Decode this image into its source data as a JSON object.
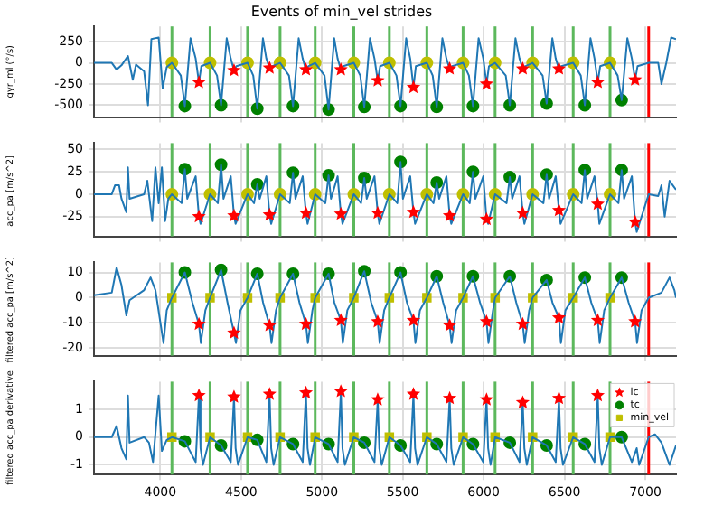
{
  "chart_data": [
    {
      "type": "line",
      "title": "Events of min_vel strides",
      "ylabel": "gyr_ml (°/s)",
      "xlim": [
        3590,
        7190
      ],
      "xticks": [
        4000,
        4500,
        5000,
        5500,
        6000,
        6500,
        7000
      ],
      "ylim": [
        -640,
        430
      ],
      "yticks": [
        -500,
        -250,
        0,
        250
      ],
      "grid": true,
      "tick_labels": "y",
      "legend": false,
      "series": [
        {
          "type": "line",
          "color": "#1f77b4",
          "marker": "none",
          "x": [
            3590,
            3700,
            3730,
            3760,
            3800,
            3830,
            3850,
            3900,
            3924,
            3945,
            3990,
            4015,
            4040,
            4072,
            4127,
            4152,
            4187,
            4219,
            4239,
            4254,
            4308,
            4351,
            4376,
            4411,
            4436,
            4456,
            4471,
            4540,
            4575,
            4600,
            4635,
            4656,
            4676,
            4691,
            4741,
            4796,
            4821,
            4856,
            4881,
            4901,
            4916,
            4958,
            5016,
            5041,
            5076,
            5097,
            5117,
            5132,
            5197,
            5237,
            5262,
            5297,
            5325,
            5345,
            5360,
            5417,
            5461,
            5486,
            5521,
            5546,
            5566,
            5581,
            5649,
            5685,
            5710,
            5745,
            5770,
            5790,
            5805,
            5873,
            5909,
            5934,
            5969,
            5998,
            6018,
            6033,
            6071,
            6137,
            6162,
            6197,
            6222,
            6242,
            6257,
            6303,
            6365,
            6390,
            6425,
            6446,
            6466,
            6481,
            6554,
            6601,
            6626,
            6661,
            6686,
            6706,
            6721,
            6782,
            6829,
            6854,
            6889,
            6917,
            6937,
            6952,
            7021,
            7080,
            7100,
            7130,
            7160,
            7190
          ],
          "values": [
            0,
            0,
            -80,
            -30,
            80,
            -200,
            -20,
            -100,
            -500,
            280,
            300,
            -300,
            -50,
            0,
            -150,
            -510,
            290,
            50,
            -230,
            -40,
            0,
            -150,
            -500,
            290,
            50,
            -90,
            -40,
            0,
            -150,
            -540,
            290,
            50,
            -60,
            -40,
            0,
            -150,
            -510,
            290,
            50,
            -80,
            -40,
            0,
            -150,
            -550,
            290,
            50,
            -80,
            -40,
            0,
            -150,
            -520,
            290,
            50,
            -210,
            -40,
            0,
            -150,
            -510,
            290,
            50,
            -290,
            -40,
            0,
            -150,
            -520,
            290,
            50,
            -70,
            -40,
            0,
            -150,
            -510,
            290,
            50,
            -250,
            -40,
            0,
            -150,
            -500,
            290,
            50,
            -70,
            -40,
            0,
            -150,
            -480,
            290,
            50,
            -70,
            -40,
            0,
            -150,
            -500,
            290,
            50,
            -230,
            -40,
            0,
            -150,
            -440,
            290,
            50,
            -200,
            -40,
            0,
            0,
            -250,
            0,
            300,
            280
          ]
        },
        {
          "type": "scatter",
          "color": "#ff0000",
          "marker": "star",
          "x": [
            4239,
            4456,
            4676,
            4901,
            5117,
            5345,
            5566,
            5790,
            6018,
            6242,
            6466,
            6706,
            6937
          ],
          "values": [
            -230,
            -90,
            -60,
            -80,
            -80,
            -210,
            -290,
            -70,
            -250,
            -70,
            -70,
            -230,
            -200
          ]
        },
        {
          "type": "scatter",
          "color": "#008000",
          "marker": "circle",
          "x": [
            4152,
            4376,
            4600,
            4821,
            5041,
            5262,
            5486,
            5710,
            5934,
            6162,
            6390,
            6626,
            6854
          ],
          "values": [
            -510,
            -500,
            -540,
            -510,
            -550,
            -520,
            -510,
            -520,
            -510,
            -500,
            -480,
            -500,
            -440
          ]
        },
        {
          "type": "scatter",
          "color": "#bfbf00",
          "marker": "circle",
          "x": [
            4072,
            4308,
            4540,
            4741,
            4958,
            5197,
            5417,
            5649,
            5873,
            6071,
            6303,
            6554,
            6782
          ],
          "values": [
            0,
            0,
            0,
            0,
            0,
            0,
            0,
            0,
            0,
            0,
            0,
            0,
            0
          ]
        }
      ],
      "ref_lines": [
        {
          "axis": "x",
          "value": 4072,
          "color": "#5cb85c"
        },
        {
          "axis": "x",
          "value": 4308,
          "color": "#5cb85c"
        },
        {
          "axis": "x",
          "value": 4540,
          "color": "#5cb85c"
        },
        {
          "axis": "x",
          "value": 4741,
          "color": "#5cb85c"
        },
        {
          "axis": "x",
          "value": 4958,
          "color": "#5cb85c"
        },
        {
          "axis": "x",
          "value": 5197,
          "color": "#5cb85c"
        },
        {
          "axis": "x",
          "value": 5417,
          "color": "#5cb85c"
        },
        {
          "axis": "x",
          "value": 5649,
          "color": "#5cb85c"
        },
        {
          "axis": "x",
          "value": 5873,
          "color": "#5cb85c"
        },
        {
          "axis": "x",
          "value": 6071,
          "color": "#5cb85c"
        },
        {
          "axis": "x",
          "value": 6303,
          "color": "#5cb85c"
        },
        {
          "axis": "x",
          "value": 6554,
          "color": "#5cb85c"
        },
        {
          "axis": "x",
          "value": 6782,
          "color": "#5cb85c"
        },
        {
          "axis": "x",
          "value": 7021,
          "color": "#ff0000"
        }
      ]
    },
    {
      "type": "line",
      "ylabel": "acc_pa [m/s^2]",
      "xlim": [
        3590,
        7190
      ],
      "xticks": [
        4000,
        4500,
        5000,
        5500,
        6000,
        6500,
        7000
      ],
      "ylim": [
        -47,
        57
      ],
      "yticks": [
        -25,
        0,
        25,
        50
      ],
      "grid": true,
      "tick_labels": "y",
      "legend": false,
      "series": [
        {
          "type": "line",
          "color": "#1f77b4",
          "marker": "none",
          "x": [
            3590,
            3700,
            3720,
            3745,
            3760,
            3790,
            3800,
            3810,
            3900,
            3920,
            3950,
            3970,
            3990,
            4010,
            4030,
            4050,
            4072,
            4132,
            4152,
            4167,
            4219,
            4239,
            4249,
            4308,
            4356,
            4376,
            4391,
            4436,
            4456,
            4466,
            4540,
            4580,
            4600,
            4615,
            4656,
            4676,
            4686,
            4741,
            4801,
            4821,
            4836,
            4881,
            4901,
            4911,
            4958,
            5021,
            5041,
            5056,
            5097,
            5117,
            5127,
            5197,
            5242,
            5262,
            5277,
            5325,
            5345,
            5355,
            5417,
            5466,
            5486,
            5501,
            5546,
            5566,
            5576,
            5649,
            5690,
            5710,
            5725,
            5770,
            5790,
            5800,
            5873,
            5914,
            5934,
            5949,
            5998,
            6018,
            6028,
            6071,
            6142,
            6162,
            6177,
            6222,
            6242,
            6252,
            6303,
            6370,
            6390,
            6405,
            6446,
            6466,
            6476,
            6554,
            6606,
            6626,
            6641,
            6686,
            6706,
            6716,
            6782,
            6834,
            6854,
            6869,
            6917,
            6937,
            6947,
            7021,
            7080,
            7100,
            7120,
            7150,
            7190
          ],
          "values": [
            0,
            0,
            10,
            10,
            -5,
            -20,
            30,
            -5,
            0,
            15,
            -30,
            30,
            -10,
            30,
            -30,
            -5,
            0,
            -10,
            28,
            -5,
            20,
            -25,
            -33,
            0,
            -10,
            33,
            -5,
            20,
            -24,
            -33,
            0,
            -10,
            11,
            -5,
            20,
            -23,
            -33,
            0,
            -10,
            24,
            -5,
            20,
            -21,
            -33,
            0,
            -10,
            21,
            -5,
            20,
            -22,
            -33,
            0,
            -10,
            18,
            -5,
            20,
            -21,
            -33,
            0,
            -10,
            36,
            -5,
            20,
            -20,
            -33,
            0,
            -10,
            13,
            -5,
            20,
            -24,
            -33,
            0,
            -10,
            25,
            -5,
            20,
            -28,
            -33,
            0,
            -10,
            19,
            -5,
            20,
            -21,
            -33,
            0,
            -10,
            22,
            -5,
            20,
            -18,
            -33,
            0,
            -10,
            27,
            -5,
            20,
            -11,
            -33,
            0,
            -10,
            27,
            -5,
            20,
            -31,
            -42,
            0,
            -2,
            10,
            -25,
            15,
            5
          ]
        },
        {
          "type": "scatter",
          "color": "#ff0000",
          "marker": "star",
          "x": [
            4239,
            4456,
            4676,
            4901,
            5117,
            5345,
            5566,
            5790,
            6018,
            6242,
            6466,
            6706,
            6937
          ],
          "values": [
            -25,
            -24,
            -23,
            -21,
            -22,
            -21,
            -20,
            -24,
            -28,
            -21,
            -18,
            -11,
            -31
          ]
        },
        {
          "type": "scatter",
          "color": "#008000",
          "marker": "circle",
          "x": [
            4152,
            4376,
            4600,
            4821,
            5041,
            5262,
            5486,
            5710,
            5934,
            6162,
            6390,
            6626,
            6854
          ],
          "values": [
            28,
            33,
            11,
            24,
            21,
            18,
            36,
            13,
            25,
            19,
            22,
            27,
            27
          ]
        },
        {
          "type": "scatter",
          "color": "#bfbf00",
          "marker": "circle",
          "x": [
            4072,
            4308,
            4540,
            4741,
            4958,
            5197,
            5417,
            5649,
            5873,
            6071,
            6303,
            6554,
            6782
          ],
          "values": [
            0,
            0,
            0,
            0,
            0,
            0,
            0,
            0,
            0,
            0,
            0,
            0,
            0
          ]
        }
      ],
      "ref_lines": [
        {
          "axis": "x",
          "value": 4072,
          "color": "#5cb85c"
        },
        {
          "axis": "x",
          "value": 4308,
          "color": "#5cb85c"
        },
        {
          "axis": "x",
          "value": 4540,
          "color": "#5cb85c"
        },
        {
          "axis": "x",
          "value": 4741,
          "color": "#5cb85c"
        },
        {
          "axis": "x",
          "value": 4958,
          "color": "#5cb85c"
        },
        {
          "axis": "x",
          "value": 5197,
          "color": "#5cb85c"
        },
        {
          "axis": "x",
          "value": 5417,
          "color": "#5cb85c"
        },
        {
          "axis": "x",
          "value": 5649,
          "color": "#5cb85c"
        },
        {
          "axis": "x",
          "value": 5873,
          "color": "#5cb85c"
        },
        {
          "axis": "x",
          "value": 6071,
          "color": "#5cb85c"
        },
        {
          "axis": "x",
          "value": 6303,
          "color": "#5cb85c"
        },
        {
          "axis": "x",
          "value": 6554,
          "color": "#5cb85c"
        },
        {
          "axis": "x",
          "value": 6782,
          "color": "#5cb85c"
        },
        {
          "axis": "x",
          "value": 7021,
          "color": "#ff0000"
        }
      ]
    },
    {
      "type": "line",
      "ylabel": "filtered acc_pa [m/s^2]",
      "xlim": [
        3590,
        7190
      ],
      "xticks": [
        4000,
        4500,
        5000,
        5500,
        6000,
        6500,
        7000
      ],
      "ylim": [
        -23,
        14
      ],
      "yticks": [
        -20,
        -10,
        0,
        10
      ],
      "grid": true,
      "tick_labels": "y",
      "legend": false,
      "series": [
        {
          "type": "line",
          "color": "#1f77b4",
          "marker": "none",
          "x": [
            3590,
            3700,
            3730,
            3760,
            3790,
            3810,
            3900,
            3940,
            3970,
            4020,
            4040,
            4072,
            4152,
            4199,
            4239,
            4251,
            4279,
            4308,
            4376,
            4416,
            4456,
            4468,
            4496,
            4540,
            4600,
            4636,
            4676,
            4688,
            4716,
            4741,
            4821,
            4861,
            4901,
            4913,
            4941,
            4958,
            5041,
            5077,
            5117,
            5129,
            5157,
            5197,
            5262,
            5305,
            5345,
            5357,
            5385,
            5417,
            5486,
            5526,
            5566,
            5578,
            5606,
            5649,
            5710,
            5750,
            5790,
            5802,
            5830,
            5873,
            5934,
            5978,
            6018,
            6030,
            6058,
            6071,
            6162,
            6202,
            6242,
            6254,
            6282,
            6303,
            6390,
            6426,
            6466,
            6478,
            6506,
            6554,
            6626,
            6666,
            6706,
            6718,
            6746,
            6782,
            6854,
            6897,
            6937,
            6949,
            6977,
            7021,
            7100,
            7150,
            7180,
            7190
          ],
          "values": [
            1,
            2,
            12,
            5,
            -7,
            -1,
            3,
            8,
            3,
            -18,
            -5,
            0,
            10,
            -2,
            -10.5,
            -18,
            -5,
            0,
            11,
            -2,
            -14,
            -18,
            -5,
            0,
            9.5,
            -2,
            -11,
            -18,
            -5,
            0,
            9.5,
            -2,
            -10.5,
            -18,
            -5,
            0,
            9.5,
            -2,
            -9,
            -18,
            -5,
            0,
            10.5,
            -2,
            -9.5,
            -18,
            -5,
            0,
            10,
            -2,
            -9,
            -18,
            -5,
            0,
            8.5,
            -2,
            -11,
            -18,
            -5,
            0,
            8.5,
            -2,
            -9.5,
            -18,
            -5,
            0,
            8.5,
            -2,
            -10.5,
            -18,
            -5,
            0,
            7,
            -2,
            -8,
            -18,
            -5,
            0,
            8,
            -2,
            -9,
            -18,
            -5,
            0,
            8,
            -2,
            -9.5,
            -18,
            -5,
            0,
            2,
            8,
            3,
            0
          ]
        },
        {
          "type": "scatter",
          "color": "#ff0000",
          "marker": "star",
          "x": [
            4239,
            4456,
            4676,
            4901,
            5117,
            5345,
            5566,
            5790,
            6018,
            6242,
            6466,
            6706,
            6937
          ],
          "values": [
            -10.5,
            -14,
            -11,
            -10.5,
            -9,
            -9.5,
            -9,
            -11,
            -9.5,
            -10.5,
            -8,
            -9,
            -9.5
          ]
        },
        {
          "type": "scatter",
          "color": "#008000",
          "marker": "circle",
          "x": [
            4152,
            4376,
            4600,
            4821,
            5041,
            5262,
            5486,
            5710,
            5934,
            6162,
            6390,
            6626,
            6854
          ],
          "values": [
            10,
            11,
            9.5,
            9.5,
            9.5,
            10.5,
            10,
            8.5,
            8.5,
            8.5,
            7,
            8,
            8
          ]
        },
        {
          "type": "scatter",
          "color": "#bfbf00",
          "marker": "square",
          "x": [
            4072,
            4308,
            4540,
            4741,
            4958,
            5197,
            5417,
            5649,
            5873,
            6071,
            6303,
            6554,
            6782
          ],
          "values": [
            0,
            0,
            0,
            0,
            0,
            0,
            0,
            0,
            0,
            0,
            0,
            0,
            0
          ]
        }
      ],
      "ref_lines": [
        {
          "axis": "x",
          "value": 4072,
          "color": "#5cb85c"
        },
        {
          "axis": "x",
          "value": 4308,
          "color": "#5cb85c"
        },
        {
          "axis": "x",
          "value": 4540,
          "color": "#5cb85c"
        },
        {
          "axis": "x",
          "value": 4741,
          "color": "#5cb85c"
        },
        {
          "axis": "x",
          "value": 4958,
          "color": "#5cb85c"
        },
        {
          "axis": "x",
          "value": 5197,
          "color": "#5cb85c"
        },
        {
          "axis": "x",
          "value": 5417,
          "color": "#5cb85c"
        },
        {
          "axis": "x",
          "value": 5649,
          "color": "#5cb85c"
        },
        {
          "axis": "x",
          "value": 5873,
          "color": "#5cb85c"
        },
        {
          "axis": "x",
          "value": 6071,
          "color": "#5cb85c"
        },
        {
          "axis": "x",
          "value": 6303,
          "color": "#5cb85c"
        },
        {
          "axis": "x",
          "value": 6554,
          "color": "#5cb85c"
        },
        {
          "axis": "x",
          "value": 6782,
          "color": "#5cb85c"
        },
        {
          "axis": "x",
          "value": 7021,
          "color": "#ff0000"
        }
      ]
    },
    {
      "type": "line",
      "ylabel": "filtered acc_pa derivative",
      "xlim": [
        3590,
        7190
      ],
      "xticks": [
        4000,
        4500,
        5000,
        5500,
        6000,
        6500,
        7000
      ],
      "ylim": [
        -1.35,
        2
      ],
      "yticks": [
        -1,
        0,
        1
      ],
      "grid": true,
      "legend": "top right",
      "series": [
        {
          "type": "line",
          "color": "#1f77b4",
          "marker": "none",
          "x": [
            3590,
            3700,
            3730,
            3760,
            3790,
            3800,
            3810,
            3900,
            3930,
            3955,
            3990,
            4010,
            4040,
            4072,
            4152,
            4219,
            4239,
            4249,
            4264,
            4308,
            4376,
            4436,
            4456,
            4466,
            4481,
            4540,
            4600,
            4656,
            4676,
            4686,
            4701,
            4741,
            4821,
            4881,
            4901,
            4911,
            4926,
            4958,
            5041,
            5097,
            5117,
            5127,
            5142,
            5197,
            5262,
            5325,
            5345,
            5355,
            5370,
            5417,
            5486,
            5546,
            5566,
            5576,
            5591,
            5649,
            5710,
            5770,
            5790,
            5800,
            5815,
            5873,
            5934,
            5998,
            6018,
            6028,
            6043,
            6071,
            6162,
            6222,
            6242,
            6252,
            6267,
            6303,
            6390,
            6446,
            6466,
            6476,
            6491,
            6554,
            6626,
            6686,
            6706,
            6716,
            6731,
            6782,
            6854,
            6917,
            6947,
            6962,
            7021,
            7060,
            7100,
            7150,
            7190
          ],
          "values": [
            0,
            0,
            0.4,
            -0.4,
            -0.8,
            1.5,
            -0.2,
            0,
            -0.2,
            -0.9,
            1.5,
            -0.5,
            -0.1,
            0,
            -0.15,
            -0.9,
            1.5,
            -0.4,
            -1,
            0,
            -0.3,
            -0.9,
            1.45,
            -0.4,
            -1,
            0,
            -0.1,
            -0.9,
            1.55,
            -0.4,
            -1,
            0,
            -0.25,
            -0.9,
            1.6,
            -0.4,
            -1,
            0,
            -0.25,
            -0.9,
            1.65,
            -0.4,
            -1,
            0,
            -0.2,
            -0.9,
            1.35,
            -0.4,
            -1,
            0,
            -0.3,
            -0.9,
            1.55,
            -0.4,
            -1,
            0,
            -0.25,
            -0.9,
            1.4,
            -0.4,
            -1,
            0,
            -0.25,
            -0.9,
            1.35,
            -0.4,
            -1,
            0,
            -0.2,
            -0.9,
            1.25,
            -0.4,
            -1,
            0,
            -0.3,
            -0.9,
            1.4,
            -0.4,
            -1,
            0,
            -0.25,
            -0.9,
            1.5,
            -0.4,
            -1,
            0,
            0,
            -0.9,
            -0.4,
            -1,
            0,
            0.1,
            -0.2,
            -1,
            -0.3
          ]
        },
        {
          "name": "ic",
          "type": "scatter",
          "color": "#ff0000",
          "marker": "star",
          "x": [
            4239,
            4456,
            4676,
            4901,
            5117,
            5345,
            5566,
            5790,
            6018,
            6242,
            6466,
            6706
          ],
          "values": [
            1.5,
            1.45,
            1.55,
            1.6,
            1.65,
            1.35,
            1.55,
            1.4,
            1.35,
            1.25,
            1.4,
            1.5
          ]
        },
        {
          "name": "tc",
          "type": "scatter",
          "color": "#008000",
          "marker": "circle",
          "x": [
            4152,
            4376,
            4600,
            4821,
            5041,
            5262,
            5486,
            5710,
            5934,
            6162,
            6390,
            6626,
            6854
          ],
          "values": [
            -0.15,
            -0.3,
            -0.1,
            -0.25,
            -0.25,
            -0.2,
            -0.3,
            -0.25,
            -0.25,
            -0.2,
            -0.3,
            -0.25,
            0
          ]
        },
        {
          "name": "min_vel",
          "type": "scatter",
          "color": "#bfbf00",
          "marker": "square",
          "x": [
            4072,
            4308,
            4540,
            4741,
            4958,
            5197,
            5417,
            5649,
            5873,
            6071,
            6303,
            6554,
            6782
          ],
          "values": [
            0,
            0,
            0,
            0,
            0,
            0,
            0,
            0,
            0,
            0,
            0,
            0,
            0
          ]
        }
      ],
      "ref_lines": [
        {
          "axis": "x",
          "value": 4072,
          "color": "#5cb85c"
        },
        {
          "axis": "x",
          "value": 4308,
          "color": "#5cb85c"
        },
        {
          "axis": "x",
          "value": 4540,
          "color": "#5cb85c"
        },
        {
          "axis": "x",
          "value": 4741,
          "color": "#5cb85c"
        },
        {
          "axis": "x",
          "value": 4958,
          "color": "#5cb85c"
        },
        {
          "axis": "x",
          "value": 5197,
          "color": "#5cb85c"
        },
        {
          "axis": "x",
          "value": 5417,
          "color": "#5cb85c"
        },
        {
          "axis": "x",
          "value": 5649,
          "color": "#5cb85c"
        },
        {
          "axis": "x",
          "value": 5873,
          "color": "#5cb85c"
        },
        {
          "axis": "x",
          "value": 6071,
          "color": "#5cb85c"
        },
        {
          "axis": "x",
          "value": 6303,
          "color": "#5cb85c"
        },
        {
          "axis": "x",
          "value": 6554,
          "color": "#5cb85c"
        },
        {
          "axis": "x",
          "value": 6782,
          "color": "#5cb85c"
        },
        {
          "axis": "x",
          "value": 7021,
          "color": "#ff0000"
        }
      ]
    }
  ]
}
